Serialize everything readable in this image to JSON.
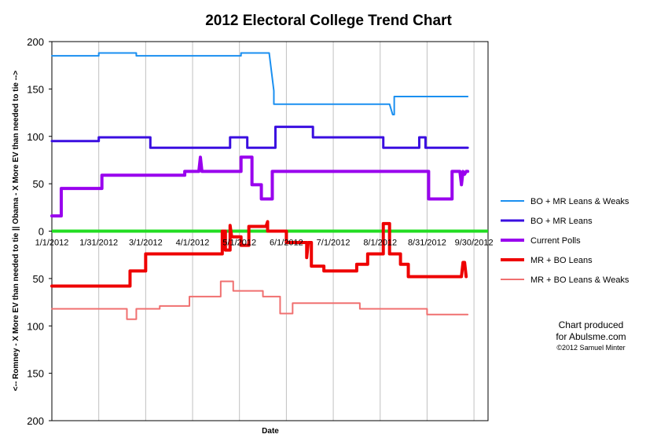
{
  "chart_data": {
    "type": "line",
    "title": "2012 Electoral College Trend Chart",
    "xlabel": "Date",
    "ylabel": "<-- Romney - X More EV than needed to tie || Obama - X More EV than needed to tie -->",
    "xlim": [
      "2012-01-01",
      "2012-10-06"
    ],
    "ylim": [
      -200,
      200
    ],
    "y_tick_values": [
      200,
      150,
      100,
      50,
      0,
      -50,
      -100,
      -150,
      -200
    ],
    "y_tick_labels": [
      "200",
      "150",
      "100",
      "50",
      "0",
      "50",
      "100",
      "150",
      "200"
    ],
    "x_tick_values": [
      "2012-01-01",
      "2012-01-31",
      "2012-03-01",
      "2012-03-31",
      "2012-04-30",
      "2012-05-30",
      "2012-06-29",
      "2012-07-29",
      "2012-08-28",
      "2012-09-27"
    ],
    "x_tick_labels": [
      "1/1/2012",
      "1/31/2012",
      "3/1/2012",
      "4/1/2012",
      "5/1/2012",
      "6/1/2012",
      "7/1/2012",
      "8/1/2012",
      "8/31/2012",
      "9/30/2012"
    ],
    "grid": {
      "vertical": true,
      "horizontal": false
    },
    "legend_position": "right",
    "series": [
      {
        "name": "BO + MR Leans & Weaks",
        "color": "#1a8ff0",
        "width": 2,
        "points": [
          [
            "2012-01-01",
            185
          ],
          [
            "2012-01-31",
            185
          ],
          [
            "2012-01-31",
            188
          ],
          [
            "2012-02-24",
            188
          ],
          [
            "2012-02-24",
            185
          ],
          [
            "2012-05-01",
            185
          ],
          [
            "2012-05-01",
            188
          ],
          [
            "2012-05-19",
            188
          ],
          [
            "2012-05-22",
            148
          ],
          [
            "2012-05-22",
            134
          ],
          [
            "2012-08-04",
            134
          ],
          [
            "2012-08-06",
            123
          ],
          [
            "2012-08-07",
            123
          ],
          [
            "2012-08-07",
            142
          ],
          [
            "2012-09-23",
            142
          ]
        ]
      },
      {
        "name": "BO + MR Leans",
        "color": "#3a0ee0",
        "width": 3,
        "points": [
          [
            "2012-01-01",
            95
          ],
          [
            "2012-01-31",
            95
          ],
          [
            "2012-01-31",
            99
          ],
          [
            "2012-03-04",
            99
          ],
          [
            "2012-03-04",
            88
          ],
          [
            "2012-04-24",
            88
          ],
          [
            "2012-04-24",
            99
          ],
          [
            "2012-05-05",
            99
          ],
          [
            "2012-05-05",
            88
          ],
          [
            "2012-05-23",
            88
          ],
          [
            "2012-05-23",
            110
          ],
          [
            "2012-06-16",
            110
          ],
          [
            "2012-06-16",
            99
          ],
          [
            "2012-07-31",
            99
          ],
          [
            "2012-07-31",
            88
          ],
          [
            "2012-08-23",
            88
          ],
          [
            "2012-08-23",
            99
          ],
          [
            "2012-08-27",
            99
          ],
          [
            "2012-08-27",
            88
          ],
          [
            "2012-09-23",
            88
          ]
        ]
      },
      {
        "name": "Current Polls",
        "color": "#9900ee",
        "width": 4,
        "points": [
          [
            "2012-01-01",
            16
          ],
          [
            "2012-01-07",
            16
          ],
          [
            "2012-01-07",
            45
          ],
          [
            "2012-02-02",
            45
          ],
          [
            "2012-02-02",
            59
          ],
          [
            "2012-03-26",
            59
          ],
          [
            "2012-03-26",
            63
          ],
          [
            "2012-04-04",
            63
          ],
          [
            "2012-04-05",
            78
          ],
          [
            "2012-04-06",
            63
          ],
          [
            "2012-05-01",
            63
          ],
          [
            "2012-05-01",
            78
          ],
          [
            "2012-05-08",
            78
          ],
          [
            "2012-05-08",
            49
          ],
          [
            "2012-05-14",
            49
          ],
          [
            "2012-05-14",
            34
          ],
          [
            "2012-05-21",
            34
          ],
          [
            "2012-05-21",
            63
          ],
          [
            "2012-08-29",
            63
          ],
          [
            "2012-08-29",
            34
          ],
          [
            "2012-09-13",
            34
          ],
          [
            "2012-09-13",
            63
          ],
          [
            "2012-09-18",
            63
          ],
          [
            "2012-09-19",
            49
          ],
          [
            "2012-09-20",
            63
          ],
          [
            "2012-09-21",
            60
          ],
          [
            "2012-09-22",
            63
          ],
          [
            "2012-09-23",
            63
          ]
        ]
      },
      {
        "name": "MR + BO Leans",
        "color": "#ee0000",
        "width": 4,
        "points": [
          [
            "2012-01-01",
            -58
          ],
          [
            "2012-02-20",
            -58
          ],
          [
            "2012-02-20",
            -42
          ],
          [
            "2012-03-01",
            -42
          ],
          [
            "2012-03-01",
            -24
          ],
          [
            "2012-04-19",
            -24
          ],
          [
            "2012-04-19",
            0
          ],
          [
            "2012-04-21",
            0
          ],
          [
            "2012-04-21",
            -20
          ],
          [
            "2012-04-24",
            -20
          ],
          [
            "2012-04-24",
            6
          ],
          [
            "2012-04-25",
            -6
          ],
          [
            "2012-05-01",
            -6
          ],
          [
            "2012-05-01",
            -15
          ],
          [
            "2012-05-06",
            -15
          ],
          [
            "2012-05-06",
            5
          ],
          [
            "2012-05-17",
            5
          ],
          [
            "2012-05-18",
            10
          ],
          [
            "2012-05-18",
            0
          ],
          [
            "2012-05-30",
            0
          ],
          [
            "2012-05-30",
            -12
          ],
          [
            "2012-06-12",
            -12
          ],
          [
            "2012-06-12",
            -28
          ],
          [
            "2012-06-13",
            -12
          ],
          [
            "2012-06-15",
            -12
          ],
          [
            "2012-06-15",
            -37
          ],
          [
            "2012-06-23",
            -37
          ],
          [
            "2012-06-23",
            -42
          ],
          [
            "2012-07-14",
            -42
          ],
          [
            "2012-07-14",
            -35
          ],
          [
            "2012-07-21",
            -35
          ],
          [
            "2012-07-21",
            -24
          ],
          [
            "2012-07-31",
            -24
          ],
          [
            "2012-07-31",
            8
          ],
          [
            "2012-08-04",
            8
          ],
          [
            "2012-08-04",
            -24
          ],
          [
            "2012-08-11",
            -24
          ],
          [
            "2012-08-11",
            -35
          ],
          [
            "2012-08-16",
            -35
          ],
          [
            "2012-08-16",
            -48
          ],
          [
            "2012-09-19",
            -48
          ],
          [
            "2012-09-20",
            -33
          ],
          [
            "2012-09-21",
            -33
          ],
          [
            "2012-09-22",
            -48
          ]
        ]
      },
      {
        "name": "MR + BO Leans & Weaks",
        "color": "#f07070",
        "width": 2,
        "points": [
          [
            "2012-01-01",
            -82
          ],
          [
            "2012-02-18",
            -82
          ],
          [
            "2012-02-18",
            -93
          ],
          [
            "2012-02-24",
            -93
          ],
          [
            "2012-02-24",
            -82
          ],
          [
            "2012-03-10",
            -82
          ],
          [
            "2012-03-10",
            -79
          ],
          [
            "2012-03-29",
            -79
          ],
          [
            "2012-03-29",
            -69
          ],
          [
            "2012-04-18",
            -69
          ],
          [
            "2012-04-18",
            -53
          ],
          [
            "2012-04-26",
            -53
          ],
          [
            "2012-04-26",
            -63
          ],
          [
            "2012-05-15",
            -63
          ],
          [
            "2012-05-15",
            -69
          ],
          [
            "2012-05-26",
            -69
          ],
          [
            "2012-05-26",
            -87
          ],
          [
            "2012-06-03",
            -87
          ],
          [
            "2012-06-03",
            -76
          ],
          [
            "2012-07-16",
            -76
          ],
          [
            "2012-07-16",
            -82
          ],
          [
            "2012-08-28",
            -82
          ],
          [
            "2012-08-28",
            -88
          ],
          [
            "2012-09-23",
            -88
          ]
        ]
      }
    ]
  },
  "credit": {
    "line1": "Chart produced",
    "line2": "for Abulsme.com",
    "line3": "©2012 Samuel Minter"
  }
}
